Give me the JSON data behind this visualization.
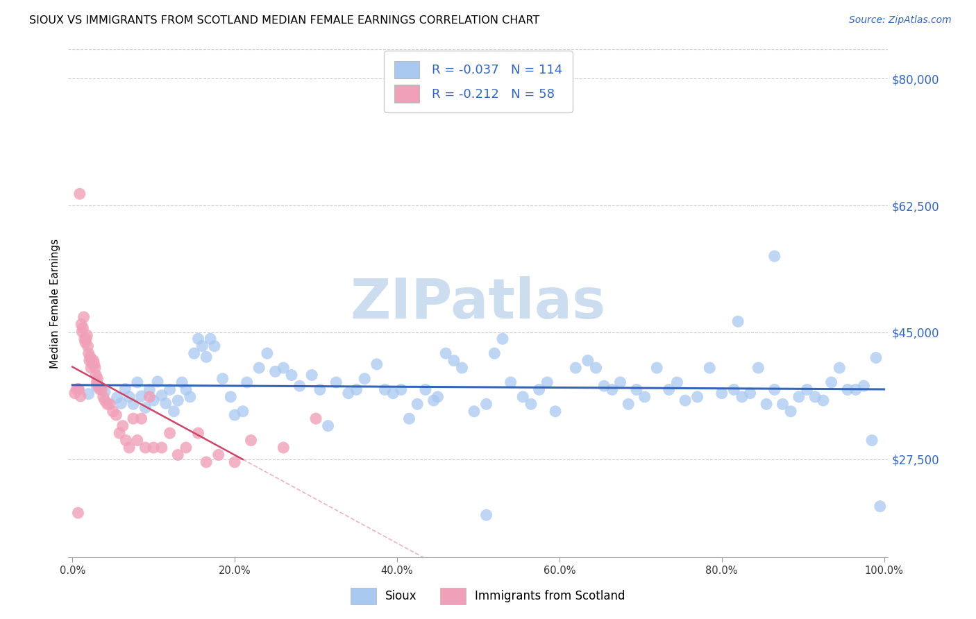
{
  "title": "SIOUX VS IMMIGRANTS FROM SCOTLAND MEDIAN FEMALE EARNINGS CORRELATION CHART",
  "source": "Source: ZipAtlas.com",
  "ylabel": "Median Female Earnings",
  "ymin": 14000,
  "ymax": 84000,
  "xmin": -0.005,
  "xmax": 1.005,
  "r1": "-0.037",
  "n1": "114",
  "r2": "-0.212",
  "n2": "58",
  "sioux_color": "#a8c8f0",
  "scotland_color": "#f0a0b8",
  "line_blue": "#3366bb",
  "line_pink": "#cc4466",
  "grid_color": "#cccccc",
  "watermark_color": "#ccddf0",
  "ytick_vals": [
    27500,
    45000,
    62500,
    80000
  ],
  "ytick_labels": [
    "$27,500",
    "$45,000",
    "$62,500",
    "$80,000"
  ],
  "xtick_vals": [
    0.0,
    0.2,
    0.4,
    0.6,
    0.8,
    1.0
  ],
  "xtick_labels": [
    "0.0%",
    "20.0%",
    "40.0%",
    "60.0%",
    "80.0%",
    "100.0%"
  ],
  "sioux_x": [
    0.02,
    0.03,
    0.04,
    0.055,
    0.06,
    0.065,
    0.07,
    0.075,
    0.08,
    0.085,
    0.09,
    0.095,
    0.1,
    0.105,
    0.11,
    0.115,
    0.12,
    0.125,
    0.13,
    0.135,
    0.14,
    0.145,
    0.15,
    0.155,
    0.16,
    0.165,
    0.17,
    0.175,
    0.185,
    0.195,
    0.2,
    0.21,
    0.215,
    0.23,
    0.24,
    0.25,
    0.26,
    0.27,
    0.28,
    0.295,
    0.305,
    0.315,
    0.325,
    0.34,
    0.35,
    0.36,
    0.375,
    0.385,
    0.395,
    0.405,
    0.415,
    0.425,
    0.435,
    0.445,
    0.45,
    0.46,
    0.47,
    0.48,
    0.495,
    0.51,
    0.52,
    0.53,
    0.54,
    0.555,
    0.565,
    0.575,
    0.585,
    0.595,
    0.62,
    0.635,
    0.645,
    0.655,
    0.665,
    0.675,
    0.685,
    0.695,
    0.705,
    0.72,
    0.735,
    0.745,
    0.755,
    0.77,
    0.785,
    0.8,
    0.815,
    0.825,
    0.835,
    0.845,
    0.855,
    0.865,
    0.875,
    0.885,
    0.895,
    0.905,
    0.915,
    0.925,
    0.935,
    0.945,
    0.955,
    0.965,
    0.975,
    0.985,
    0.995,
    0.51,
    0.82,
    0.865,
    0.99
  ],
  "sioux_y": [
    36500,
    37500,
    36800,
    36000,
    35200,
    37200,
    36100,
    35100,
    38100,
    36200,
    34600,
    37100,
    35600,
    38200,
    36300,
    35200,
    37100,
    34100,
    35600,
    38100,
    37100,
    36100,
    42100,
    44100,
    43100,
    41600,
    44100,
    43100,
    38600,
    36100,
    33600,
    34100,
    38100,
    40100,
    42100,
    39600,
    40100,
    39100,
    37600,
    39100,
    37100,
    32100,
    38100,
    36600,
    37100,
    38600,
    40600,
    37100,
    36600,
    37100,
    33100,
    35100,
    37100,
    35600,
    36100,
    42100,
    41100,
    40100,
    34100,
    35100,
    42100,
    44100,
    38100,
    36100,
    35100,
    37100,
    38100,
    34100,
    40100,
    41100,
    40100,
    37600,
    37100,
    38100,
    35100,
    37100,
    36100,
    40100,
    37100,
    38100,
    35600,
    36100,
    40100,
    36600,
    37100,
    36100,
    36600,
    40100,
    35100,
    37100,
    35100,
    34100,
    36100,
    37100,
    36100,
    35600,
    38100,
    40100,
    37100,
    37100,
    37600,
    30100,
    21000,
    19800,
    46500,
    55500,
    41500
  ],
  "scotland_x": [
    0.003,
    0.005,
    0.007,
    0.008,
    0.009,
    0.01,
    0.011,
    0.012,
    0.013,
    0.014,
    0.015,
    0.016,
    0.017,
    0.018,
    0.019,
    0.02,
    0.021,
    0.022,
    0.023,
    0.024,
    0.025,
    0.026,
    0.027,
    0.028,
    0.029,
    0.03,
    0.031,
    0.032,
    0.034,
    0.036,
    0.038,
    0.04,
    0.043,
    0.046,
    0.05,
    0.054,
    0.058,
    0.062,
    0.066,
    0.07,
    0.075,
    0.08,
    0.085,
    0.09,
    0.095,
    0.1,
    0.11,
    0.12,
    0.13,
    0.14,
    0.155,
    0.165,
    0.18,
    0.2,
    0.22,
    0.26,
    0.3,
    0.007
  ],
  "scotland_y": [
    36600,
    37100,
    37200,
    37100,
    64100,
    36200,
    46100,
    45100,
    45600,
    47100,
    44100,
    43600,
    44100,
    44600,
    43100,
    42100,
    41100,
    41600,
    40100,
    41100,
    40600,
    41100,
    40600,
    40100,
    39100,
    38100,
    38600,
    37600,
    37100,
    37100,
    36100,
    35600,
    35100,
    35100,
    34100,
    33600,
    31100,
    32100,
    30100,
    29100,
    33100,
    30100,
    33100,
    29100,
    36100,
    29100,
    29100,
    31100,
    28100,
    29100,
    31100,
    27100,
    28100,
    27100,
    30100,
    29100,
    33100,
    20100
  ]
}
